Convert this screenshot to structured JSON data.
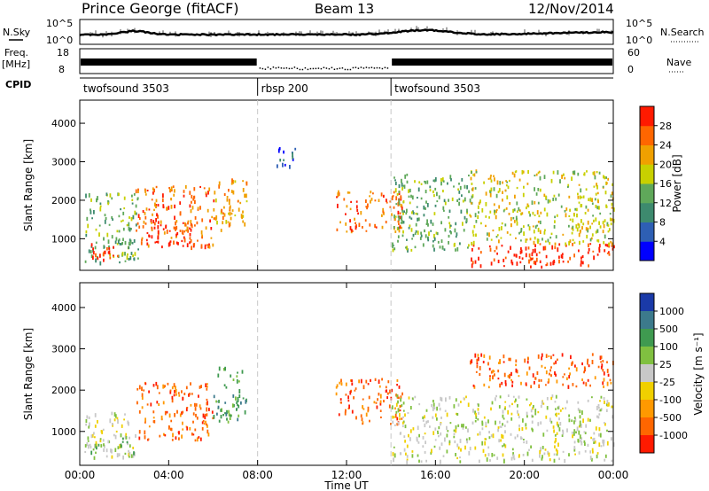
{
  "header": {
    "station": "Prince George (fitACF)",
    "beam": "Beam 13",
    "date": "12/Nov/2014"
  },
  "top_panels": {
    "nsky_label": "N.Sky",
    "nsky_ticks": [
      "10^5",
      "10^0"
    ],
    "nsearch_label": "N.Search",
    "nsearch_ticks": [
      "10^5",
      "10^0"
    ],
    "freq_label": "Freq.",
    "freq_unit": "[MHz]",
    "freq_ticks": [
      "18",
      "8"
    ],
    "nave_label": "Nave",
    "nave_ticks": [
      "60",
      "0"
    ],
    "cpid_label": "CPID",
    "cpid_segments": [
      {
        "label": "twofsound 3503",
        "start_hour": 0,
        "end_hour": 8
      },
      {
        "label": "rbsp 200",
        "start_hour": 8,
        "end_hour": 14
      },
      {
        "label": "twofsound 3503",
        "start_hour": 14,
        "end_hour": 24
      }
    ]
  },
  "chart_data": [
    {
      "type": "heatmap",
      "name": "power",
      "ylabel": "Slant Range [km]",
      "y_ticks": [
        "1000",
        "2000",
        "3000",
        "4000"
      ],
      "y_tick_values": [
        1000,
        2000,
        3000,
        4000
      ],
      "ylim": [
        180,
        4600
      ],
      "xlim_hours": [
        0,
        24
      ],
      "colorbar_label": "Power [dB]",
      "colorbar_ticks": [
        "4",
        "8",
        "12",
        "16",
        "20",
        "24",
        "28"
      ],
      "colorbar_colors": [
        "#0000ff",
        "#2e5fb4",
        "#3d8a6e",
        "#5fa85a",
        "#c8d000",
        "#f0a000",
        "#ff6600",
        "#ff1a00"
      ],
      "scatter_regions": [
        {
          "start_hour": 0.2,
          "end_hour": 2.6,
          "range_low": 400,
          "range_high": 2200,
          "color_index": 3
        },
        {
          "start_hour": 0.5,
          "end_hour": 2.0,
          "range_low": 450,
          "range_high": 900,
          "color_index": 7
        },
        {
          "start_hour": 2.5,
          "end_hour": 6.0,
          "range_low": 800,
          "range_high": 2400,
          "color_index": 6
        },
        {
          "start_hour": 3.0,
          "end_hour": 5.0,
          "range_low": 900,
          "range_high": 1500,
          "color_index": 7
        },
        {
          "start_hour": 6.0,
          "end_hour": 7.5,
          "range_low": 1200,
          "range_high": 2600,
          "color_index": 5
        },
        {
          "start_hour": 8.8,
          "end_hour": 9.8,
          "range_low": 2900,
          "range_high": 3400,
          "color_index": 1
        },
        {
          "start_hour": 11.5,
          "end_hour": 14.5,
          "range_low": 1200,
          "range_high": 2300,
          "color_index": 6
        },
        {
          "start_hour": 14.0,
          "end_hour": 17.5,
          "range_low": 700,
          "range_high": 2700,
          "color_index": 3
        },
        {
          "start_hour": 17.5,
          "end_hour": 24.0,
          "range_low": 300,
          "range_high": 900,
          "color_index": 7
        },
        {
          "start_hour": 17.5,
          "end_hour": 24.0,
          "range_low": 900,
          "range_high": 2800,
          "color_index": 4
        }
      ]
    },
    {
      "type": "heatmap",
      "name": "velocity",
      "ylabel": "Slant Range [km]",
      "y_ticks": [
        "1000",
        "2000",
        "3000",
        "4000"
      ],
      "y_tick_values": [
        1000,
        2000,
        3000,
        4000
      ],
      "ylim": [
        180,
        4600
      ],
      "xlim_hours": [
        0,
        24
      ],
      "colorbar_label": "Velocity [m s⁻¹]",
      "colorbar_ticks": [
        "1000",
        "500",
        "100",
        "25",
        "-25",
        "-100",
        "-500",
        "-1000"
      ],
      "colorbar_colors": [
        "#1a3aa8",
        "#3c7a8c",
        "#3f9a50",
        "#80c040",
        "#c8c8c8",
        "#f0d000",
        "#ff9900",
        "#ff6600",
        "#ff1a00"
      ],
      "scatter_regions": [
        {
          "start_hour": 0.2,
          "end_hour": 2.5,
          "range_low": 400,
          "range_high": 1500,
          "color_index": 4
        },
        {
          "start_hour": 0.3,
          "end_hour": 2.5,
          "range_low": 500,
          "range_high": 900,
          "color_index": 3
        },
        {
          "start_hour": 2.5,
          "end_hour": 6.0,
          "range_low": 800,
          "range_high": 2200,
          "color_index": 7
        },
        {
          "start_hour": 6.0,
          "end_hour": 7.5,
          "range_low": 1200,
          "range_high": 2600,
          "color_index": 2
        },
        {
          "start_hour": 11.5,
          "end_hour": 14.5,
          "range_low": 1200,
          "range_high": 2300,
          "color_index": 7
        },
        {
          "start_hour": 14.0,
          "end_hour": 24.0,
          "range_low": 300,
          "range_high": 1900,
          "color_index": 4
        },
        {
          "start_hour": 17.5,
          "end_hour": 24.0,
          "range_low": 2100,
          "range_high": 2900,
          "color_index": 7
        }
      ]
    }
  ],
  "x_axis": {
    "label": "Time UT",
    "ticks": [
      "00:00",
      "04:00",
      "08:00",
      "12:00",
      "16:00",
      "20:00",
      "00:00"
    ],
    "tick_hours": [
      0,
      4,
      8,
      12,
      16,
      20,
      24
    ]
  }
}
